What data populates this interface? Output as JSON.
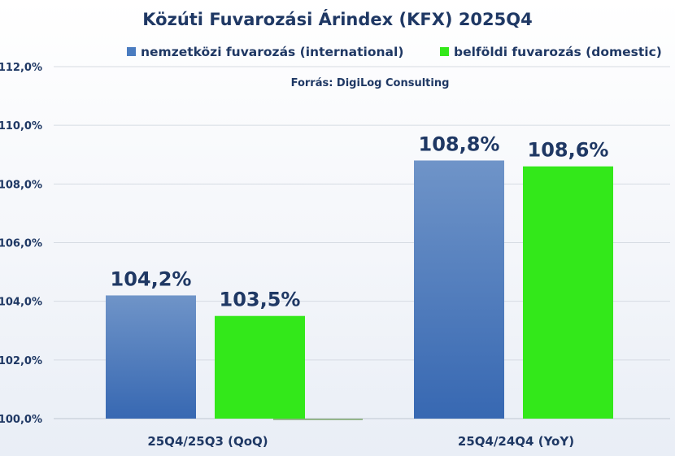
{
  "chart_data": {
    "type": "bar",
    "title": "Közúti Fuvarozási Árindex (KFX) 2025Q4",
    "source": "Forrás: DigiLog Consulting",
    "categories": [
      "25Q4/25Q3 (QoQ)",
      "25Q4/24Q4 (YoY)"
    ],
    "series": [
      {
        "name": "nemzetközi fuvarozás (international)",
        "color": "#4a7cc0",
        "values": [
          104.2,
          108.8
        ],
        "labels": [
          "104,2%",
          "108,8%"
        ]
      },
      {
        "name": "belföldi fuvarozás (domestic)",
        "color": "#33e81a",
        "values": [
          103.5,
          108.6
        ],
        "labels": [
          "103,5%",
          "108,6%"
        ]
      }
    ],
    "ylim": [
      100,
      112
    ],
    "yticks": [
      100,
      102,
      104,
      106,
      108,
      110,
      112
    ],
    "ytick_labels": [
      "100,0%",
      "102,0%",
      "104,0%",
      "106,0%",
      "108,0%",
      "110,0%",
      "112,0%"
    ],
    "legend_position": "top",
    "grid": true
  }
}
